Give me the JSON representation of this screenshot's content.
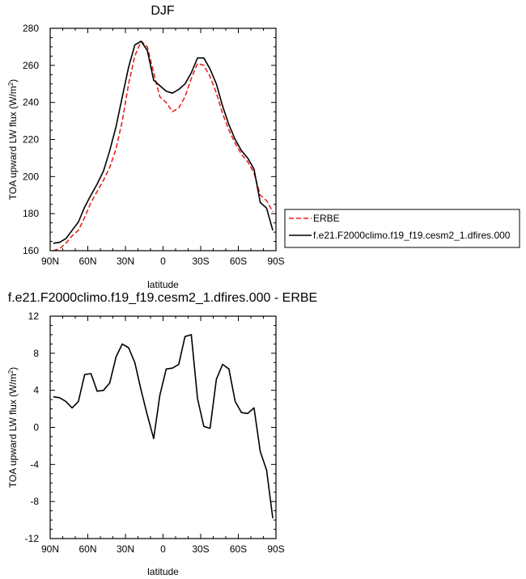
{
  "chart_data": [
    {
      "type": "line",
      "title": "DJF",
      "xlabel": "latitude",
      "ylabel": "TOA upward LW flux (W/m²)",
      "ylim": [
        160,
        280
      ],
      "xlim": [
        -90,
        90
      ],
      "x_ticks": [
        -90,
        -60,
        -30,
        0,
        30,
        60,
        90
      ],
      "x_tick_labels": [
        "90N",
        "60N",
        "30N",
        "0",
        "30S",
        "60S",
        "90S"
      ],
      "y_ticks": [
        160,
        180,
        200,
        220,
        240,
        260,
        280
      ],
      "y_tick_labels": [
        "160",
        "180",
        "200",
        "220",
        "240",
        "260",
        "280"
      ],
      "legend": "outside-right",
      "series": [
        {
          "name": "ERBE",
          "color": "#e8241f",
          "dash": "dashed",
          "x": [
            -87.5,
            -82.5,
            -77.5,
            -72.5,
            -67.5,
            -62.5,
            -57.5,
            -52.5,
            -47.5,
            -42.5,
            -37.5,
            -32.5,
            -27.5,
            -22.5,
            -17.5,
            -12.5,
            -7.5,
            -2.5,
            2.5,
            7.5,
            12.5,
            17.5,
            22.5,
            27.5,
            32.5,
            37.5,
            42.5,
            47.5,
            52.5,
            57.5,
            62.5,
            67.5,
            72.5,
            77.5,
            82.5,
            87.5
          ],
          "values": [
            160,
            161,
            164,
            168,
            171,
            178,
            186,
            192,
            198,
            205,
            215,
            230,
            250,
            265,
            273,
            270,
            256,
            243,
            240,
            235,
            237,
            243,
            253,
            261,
            260,
            254,
            245,
            234,
            225,
            218,
            212,
            208,
            202,
            190,
            187,
            181
          ]
        },
        {
          "name": "f.e21.F2000climo.f19_f19.cesm2_1.dfires.000",
          "color": "#000000",
          "dash": "solid",
          "x": [
            -87.5,
            -82.5,
            -77.5,
            -72.5,
            -67.5,
            -62.5,
            -57.5,
            -52.5,
            -47.5,
            -42.5,
            -37.5,
            -32.5,
            -27.5,
            -22.5,
            -17.5,
            -12.5,
            -7.5,
            -2.5,
            2.5,
            7.5,
            12.5,
            17.5,
            22.5,
            27.5,
            32.5,
            37.5,
            42.5,
            47.5,
            52.5,
            57.5,
            62.5,
            67.5,
            72.5,
            77.5,
            82.5,
            87.5
          ],
          "values": [
            164,
            164.5,
            166.5,
            171,
            175.5,
            183.5,
            190,
            196,
            203,
            214,
            227,
            243,
            259,
            271,
            273,
            268,
            252,
            249,
            246,
            245,
            247,
            250,
            256,
            264,
            264,
            258,
            250,
            238,
            228,
            220,
            214,
            210,
            204,
            186,
            183,
            171
          ]
        }
      ]
    },
    {
      "type": "line",
      "title": "f.e21.F2000climo.f19_f19.cesm2_1.dfires.000 - ERBE",
      "xlabel": "latitude",
      "ylabel": "TOA upward LW flux (W/m²)",
      "ylim": [
        -12,
        12
      ],
      "xlim": [
        -90,
        90
      ],
      "x_ticks": [
        -90,
        -60,
        -30,
        0,
        30,
        60,
        90
      ],
      "x_tick_labels": [
        "90N",
        "60N",
        "30N",
        "0",
        "30S",
        "60S",
        "90S"
      ],
      "y_ticks": [
        -12,
        -8,
        -4,
        0,
        4,
        8,
        12
      ],
      "y_tick_labels": [
        "-12",
        "-8",
        "-4",
        "0",
        "4",
        "8",
        "12"
      ],
      "series": [
        {
          "color": "#000000",
          "dash": "solid",
          "x": [
            -87.5,
            -82.5,
            -77.5,
            -72.5,
            -67.5,
            -62.5,
            -57.5,
            -52.5,
            -47.5,
            -42.5,
            -37.5,
            -32.5,
            -27.5,
            -22.5,
            -17.5,
            -12.5,
            -7.5,
            -2.5,
            2.5,
            7.5,
            12.5,
            17.5,
            22.5,
            27.5,
            32.5,
            37.5,
            42.5,
            47.5,
            52.5,
            57.5,
            62.5,
            67.5,
            72.5,
            77.5,
            82.5,
            87.5
          ],
          "values": [
            3.3,
            3.2,
            2.8,
            2.1,
            2.8,
            5.7,
            5.8,
            3.9,
            4.0,
            4.8,
            7.6,
            9.0,
            8.6,
            7.0,
            4.0,
            1.3,
            -1.2,
            3.5,
            6.3,
            6.4,
            6.8,
            9.8,
            10.0,
            3.1,
            0.1,
            -0.1,
            5.2,
            6.8,
            6.3,
            2.8,
            1.6,
            1.5,
            2.1,
            -2.6,
            -4.6,
            -9.8
          ]
        }
      ]
    }
  ]
}
